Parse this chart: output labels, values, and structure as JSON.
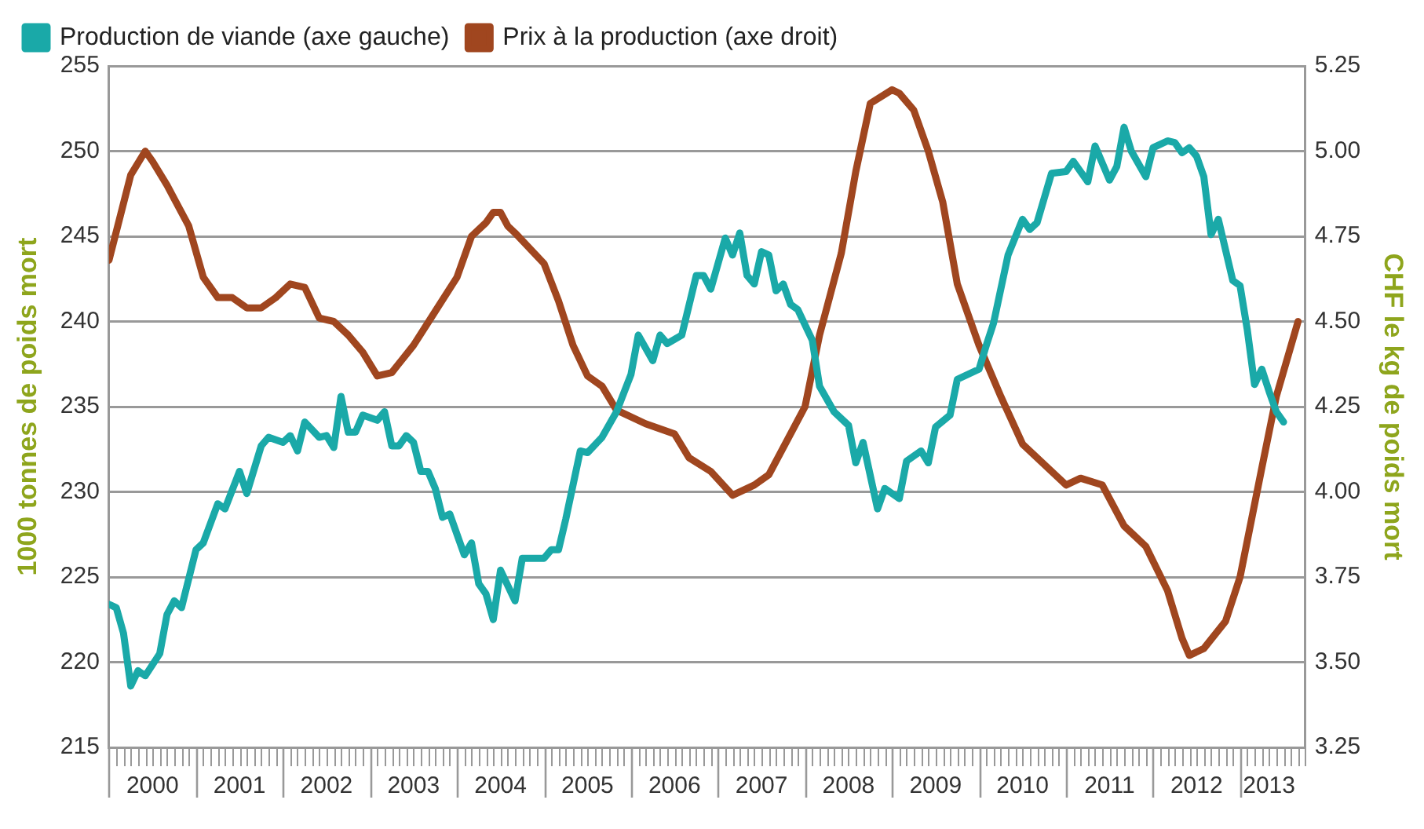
{
  "chart_data": {
    "type": "line",
    "ylabel": "1000 tonnes de poids mort",
    "y2label": "CHF le kg de poids mort",
    "xlim": [
      "2000-01",
      "2013-10"
    ],
    "xticks": [
      {
        "value": "2000-01",
        "label": null
      },
      {
        "value": "2000-07",
        "label": "2000"
      },
      {
        "value": "2001-01",
        "label": null
      },
      {
        "value": "2001-07",
        "label": "2001"
      },
      {
        "value": "2002-01",
        "label": null
      },
      {
        "value": "2002-07",
        "label": "2002"
      },
      {
        "value": "2003-01",
        "label": null
      },
      {
        "value": "2003-07",
        "label": "2003"
      },
      {
        "value": "2004-01",
        "label": null
      },
      {
        "value": "2004-07",
        "label": "2004"
      },
      {
        "value": "2005-01",
        "label": null
      },
      {
        "value": "2005-07",
        "label": "2005"
      },
      {
        "value": "2006-01",
        "label": null
      },
      {
        "value": "2006-07",
        "label": "2006"
      },
      {
        "value": "2007-01",
        "label": null
      },
      {
        "value": "2007-07",
        "label": "2007"
      },
      {
        "value": "2008-01",
        "label": null
      },
      {
        "value": "2008-07",
        "label": "2008"
      },
      {
        "value": "2009-01",
        "label": null
      },
      {
        "value": "2009-07",
        "label": "2009"
      },
      {
        "value": "2010-01",
        "label": null
      },
      {
        "value": "2010-07",
        "label": "2010"
      },
      {
        "value": "2011-01",
        "label": null
      },
      {
        "value": "2011-07",
        "label": "2011"
      },
      {
        "value": "2012-01",
        "label": null
      },
      {
        "value": "2012-07",
        "label": "2012"
      },
      {
        "value": "2013-01",
        "label": null
      },
      {
        "value": "2013-05",
        "label": "2013"
      }
    ],
    "ylim": [
      215,
      255
    ],
    "yticks": [
      215,
      220,
      225,
      230,
      235,
      240,
      245,
      250,
      255
    ],
    "y2lim": [
      3.25,
      5.25
    ],
    "y2ticks": [
      3.25,
      {
        "value": 3.5,
        "label": "3.50"
      },
      3.75,
      {
        "value": 4,
        "label": "4.00"
      },
      4.25,
      {
        "value": 4.5,
        "label": "4.50"
      },
      4.75,
      {
        "value": 5,
        "label": "5.00"
      },
      5.25
    ],
    "grid": "y",
    "legend": "top",
    "marker": "none",
    "line_style": "solid",
    "series": [
      {
        "name": "Production de viande (axe gauche)",
        "color": "#1aa9a8",
        "x": [
          "2000-01",
          "2000-02",
          "2000-03",
          "2000-04",
          "2000-05",
          "2000-06",
          "2000-08",
          "2000-09",
          "2000-10",
          "2000-11",
          "2001-01",
          "2001-02",
          "2001-04",
          "2001-05",
          "2001-07",
          "2001-08",
          "2001-10",
          "2001-11",
          "2002-01",
          "2002-02",
          "2002-03",
          "2002-04",
          "2002-06",
          "2002-07",
          "2002-08",
          "2002-09",
          "2002-10",
          "2002-11",
          "2002-12",
          "2003-02",
          "2003-03",
          "2003-04",
          "2003-05",
          "2003-06",
          "2003-07",
          "2003-08",
          "2003-09",
          "2003-10",
          "2003-11",
          "2003-12",
          "2004-02",
          "2004-03",
          "2004-04",
          "2004-05",
          "2004-06",
          "2004-07",
          "2004-09",
          "2004-10",
          "2005-01",
          "2005-02",
          "2005-03",
          "2005-04",
          "2005-06",
          "2005-07",
          "2005-09",
          "2005-11",
          "2006-01",
          "2006-02",
          "2006-04",
          "2006-05",
          "2006-06",
          "2006-08",
          "2006-10",
          "2006-11",
          "2006-12",
          "2007-02",
          "2007-03",
          "2007-04",
          "2007-05",
          "2007-06",
          "2007-07",
          "2007-08",
          "2007-09",
          "2007-10",
          "2007-11",
          "2007-12",
          "2008-02",
          "2008-03",
          "2008-05",
          "2008-07",
          "2008-08",
          "2008-09",
          "2008-11",
          "2008-12",
          "2009-02",
          "2009-03",
          "2009-05",
          "2009-06",
          "2009-07",
          "2009-09",
          "2009-10",
          "2010-01",
          "2010-02",
          "2010-03",
          "2010-05",
          "2010-07",
          "2010-08",
          "2010-09",
          "2010-11",
          "2011-01",
          "2011-02",
          "2011-04",
          "2011-05",
          "2011-07",
          "2011-08",
          "2011-09",
          "2011-10",
          "2011-12",
          "2012-01",
          "2012-03",
          "2012-04",
          "2012-05",
          "2012-06",
          "2012-07",
          "2012-08",
          "2012-09",
          "2012-10",
          "2012-12",
          "2013-01",
          "2013-02",
          "2013-03",
          "2013-04",
          "2013-05",
          "2013-06",
          "2013-07"
        ],
        "values": [
          223.4,
          223.2,
          221.7,
          218.6,
          219.5,
          219.2,
          220.5,
          222.8,
          223.6,
          223.2,
          226.6,
          227.0,
          229.3,
          229.0,
          231.2,
          229.9,
          232.7,
          233.2,
          232.9,
          233.3,
          232.4,
          234.1,
          233.2,
          233.3,
          232.6,
          235.6,
          233.5,
          233.5,
          234.5,
          234.2,
          234.7,
          232.7,
          232.7,
          233.3,
          232.9,
          231.2,
          231.2,
          230.2,
          228.5,
          228.7,
          226.3,
          227.0,
          224.6,
          224.0,
          222.5,
          225.4,
          223.6,
          226.1,
          226.1,
          226.6,
          226.6,
          228.4,
          232.4,
          232.3,
          233.2,
          234.7,
          236.9,
          239.2,
          237.7,
          239.2,
          238.7,
          239.2,
          242.7,
          242.7,
          241.9,
          244.9,
          243.9,
          245.2,
          242.7,
          242.2,
          244.1,
          243.9,
          241.8,
          242.2,
          241.0,
          240.7,
          238.9,
          236.2,
          234.7,
          233.9,
          231.7,
          232.9,
          229.0,
          230.2,
          229.6,
          231.8,
          232.4,
          231.7,
          233.8,
          234.5,
          236.6,
          237.2,
          238.6,
          239.9,
          243.9,
          246.0,
          245.4,
          245.8,
          248.7,
          248.8,
          249.4,
          248.2,
          250.3,
          248.3,
          249.1,
          251.4,
          250.0,
          248.5,
          250.2,
          250.6,
          250.5,
          249.9,
          250.2,
          249.7,
          248.5,
          245.1,
          246.0,
          242.4,
          242.1,
          239.5,
          236.3,
          237.2,
          235.9,
          234.7,
          234.1
        ]
      },
      {
        "name": "Prix à la production (axe droit)",
        "color": "#a0461f",
        "axis": "y2",
        "x": [
          "2000-01",
          "2000-04",
          "2000-06",
          "2000-07",
          "2000-09",
          "2000-12",
          "2001-02",
          "2001-04",
          "2001-06",
          "2001-08",
          "2001-10",
          "2001-12",
          "2002-02",
          "2002-04",
          "2002-06",
          "2002-08",
          "2002-10",
          "2002-12",
          "2003-02",
          "2003-04",
          "2003-07",
          "2003-10",
          "2004-01",
          "2004-03",
          "2004-05",
          "2004-06",
          "2004-07",
          "2004-08",
          "2004-09",
          "2005-01",
          "2005-03",
          "2005-05",
          "2005-07",
          "2005-09",
          "2005-11",
          "2006-03",
          "2006-07",
          "2006-09",
          "2006-12",
          "2007-03",
          "2007-06",
          "2007-08",
          "2007-10",
          "2008-01",
          "2008-03",
          "2008-06",
          "2008-08",
          "2008-10",
          "2009-01",
          "2009-02",
          "2009-04",
          "2009-06",
          "2009-08",
          "2009-10",
          "2010-01",
          "2010-04",
          "2010-07",
          "2011-01",
          "2011-03",
          "2011-06",
          "2011-09",
          "2011-12",
          "2012-03",
          "2012-05",
          "2012-06",
          "2012-08",
          "2012-11",
          "2013-01",
          "2013-04",
          "2013-06",
          "2013-09"
        ],
        "values": [
          4.68,
          4.93,
          5.0,
          4.97,
          4.9,
          4.78,
          4.63,
          4.57,
          4.57,
          4.54,
          4.54,
          4.57,
          4.61,
          4.6,
          4.51,
          4.5,
          4.46,
          4.41,
          4.34,
          4.35,
          4.43,
          4.53,
          4.63,
          4.75,
          4.79,
          4.82,
          4.82,
          4.78,
          4.76,
          4.67,
          4.56,
          4.43,
          4.34,
          4.31,
          4.24,
          4.2,
          4.17,
          4.1,
          4.06,
          3.99,
          4.02,
          4.05,
          4.13,
          4.25,
          4.46,
          4.7,
          4.94,
          5.14,
          5.18,
          5.17,
          5.12,
          5.0,
          4.85,
          4.61,
          4.43,
          4.28,
          4.14,
          4.02,
          4.04,
          4.02,
          3.9,
          3.84,
          3.71,
          3.57,
          3.52,
          3.54,
          3.62,
          3.75,
          4.07,
          4.28,
          4.5
        ]
      }
    ]
  }
}
